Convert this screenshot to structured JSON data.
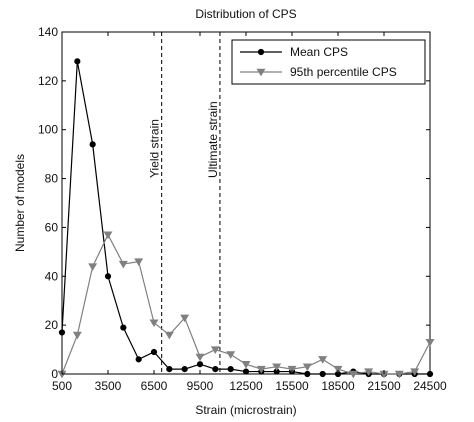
{
  "chart_data": {
    "type": "line",
    "title": "Distribution of CPS",
    "xlabel": "Strain (microstrain)",
    "ylabel": "Number of models",
    "xlim": [
      500,
      24500
    ],
    "ylim": [
      0,
      140
    ],
    "xticks": [
      500,
      3500,
      6500,
      9500,
      12500,
      15500,
      18500,
      21500,
      24500
    ],
    "yticks": [
      0,
      20,
      40,
      60,
      80,
      100,
      120,
      140
    ],
    "grid": false,
    "legend_position": "top-right",
    "series": [
      {
        "name": "Mean CPS",
        "color": "#000000",
        "marker": "circle",
        "x": [
          500,
          1500,
          2500,
          3500,
          4500,
          5500,
          6500,
          7500,
          8500,
          9500,
          10500,
          11500,
          12500,
          13500,
          14500,
          15500,
          16500,
          17500,
          18500,
          19500,
          20500,
          21500,
          22500,
          23500,
          24500
        ],
        "y": [
          17,
          128,
          94,
          40,
          19,
          6,
          9,
          2,
          2,
          4,
          2,
          2,
          1,
          1,
          1,
          1,
          0,
          0,
          0,
          1,
          0,
          0,
          0,
          0,
          0
        ]
      },
      {
        "name": "95th percentile CPS",
        "color": "#808080",
        "marker": "triangle-down",
        "x": [
          500,
          1500,
          2500,
          3500,
          4500,
          5500,
          6500,
          7500,
          8500,
          9500,
          10500,
          11500,
          12500,
          13500,
          14500,
          15500,
          16500,
          17500,
          18500,
          19500,
          20500,
          21500,
          22500,
          23500,
          24500
        ],
        "y": [
          0,
          16,
          44,
          57,
          45,
          46,
          21,
          16,
          23,
          7,
          10,
          8,
          4,
          2,
          3,
          2,
          3,
          6,
          2,
          0,
          1,
          0,
          0,
          1,
          13
        ]
      }
    ],
    "annotations": [
      {
        "label": "Yield strain",
        "x": 7000
      },
      {
        "label": "Ultimate strain",
        "x": 10800
      }
    ]
  }
}
